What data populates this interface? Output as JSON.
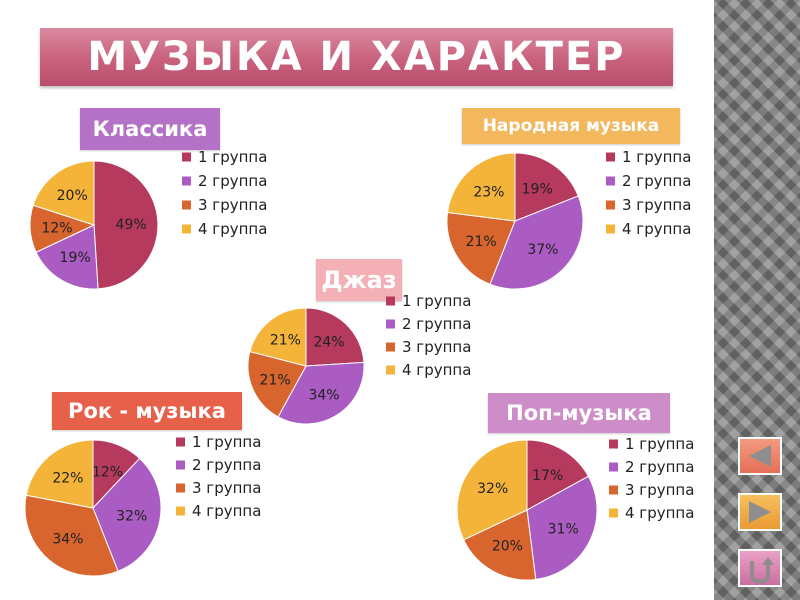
{
  "page": {
    "title": "МУЗЫКА И ХАРАКТЕР"
  },
  "colors": [
    "#b53a5e",
    "#aa5cc2",
    "#d8652e",
    "#f4b43a"
  ],
  "chart_data": [
    {
      "type": "pie",
      "title": "Классика",
      "categories": [
        "1 группа",
        "2 группа",
        "3 группа",
        "4 группа"
      ],
      "values": [
        49,
        19,
        12,
        20
      ],
      "unit": "%",
      "legend": "right"
    },
    {
      "type": "pie",
      "title": "Народная музыка",
      "categories": [
        "1 группа",
        "2 группа",
        "3 группа",
        "4 группа"
      ],
      "values": [
        19,
        37,
        21,
        23
      ],
      "unit": "%",
      "legend": "right"
    },
    {
      "type": "pie",
      "title": "Джаз",
      "categories": [
        "1 группа",
        "2 группа",
        "3 группа",
        "4 группа"
      ],
      "values": [
        24,
        34,
        21,
        21
      ],
      "unit": "%",
      "legend": "right"
    },
    {
      "type": "pie",
      "title": "Рок - музыка",
      "categories": [
        "1 группа",
        "2 группа",
        "3 группа",
        "4 группа"
      ],
      "values": [
        12,
        32,
        34,
        22
      ],
      "unit": "%",
      "legend": "right"
    },
    {
      "type": "pie",
      "title": "Поп-музыка",
      "categories": [
        "1 группа",
        "2 группа",
        "3 группа",
        "4 группа"
      ],
      "values": [
        17,
        31,
        20,
        32
      ],
      "unit": "%",
      "legend": "right"
    }
  ],
  "nav": {
    "prev_icon": "triangle-left-icon",
    "next_icon": "triangle-right-icon",
    "return_icon": "return-arrow-icon"
  }
}
